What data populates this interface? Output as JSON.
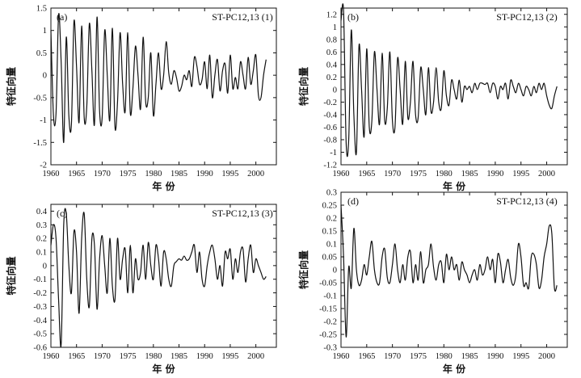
{
  "figure": {
    "xlabel": "年 份",
    "ylabel": "特征向量"
  },
  "chart_data": [
    {
      "type": "line",
      "panel": "(a)",
      "title": "ST-PC12,13 (1)",
      "xlabel": "年 份",
      "ylabel": "特征向量",
      "xlim": [
        1960,
        2004
      ],
      "ylim": [
        -2,
        1.5
      ],
      "xticks": [
        1960,
        1965,
        1970,
        1975,
        1980,
        1985,
        1990,
        1995,
        2000
      ],
      "yticks": [
        1.5,
        1,
        0.5,
        0,
        -0.5,
        -1,
        -1.5,
        -2
      ],
      "x": [
        1960.0,
        1960.5,
        1961.0,
        1961.5,
        1962.0,
        1962.5,
        1963.0,
        1963.5,
        1964.0,
        1964.5,
        1965.0,
        1965.5,
        1966.0,
        1966.5,
        1967.0,
        1967.5,
        1968.0,
        1968.5,
        1969.0,
        1969.5,
        1970.0,
        1970.5,
        1971.0,
        1971.5,
        1972.0,
        1972.5,
        1973.0,
        1973.5,
        1974.0,
        1974.5,
        1975.0,
        1975.5,
        1976.0,
        1976.5,
        1977.0,
        1977.5,
        1978.0,
        1978.5,
        1979.0,
        1979.5,
        1980.0,
        1980.5,
        1981.0,
        1981.5,
        1982.0,
        1982.5,
        1983.0,
        1983.5,
        1984.0,
        1984.5,
        1985.0,
        1985.5,
        1986.0,
        1986.5,
        1987.0,
        1987.5,
        1988.0,
        1988.5,
        1989.0,
        1989.5,
        1990.0,
        1990.5,
        1991.0,
        1991.5,
        1992.0,
        1992.5,
        1993.0,
        1993.5,
        1994.0,
        1994.5,
        1995.0,
        1995.5,
        1996.0,
        1996.5,
        1997.0,
        1997.5,
        1998.0,
        1998.5,
        1999.0,
        1999.5,
        2000.0,
        2000.5,
        2001.0,
        2001.5,
        2002.0
      ],
      "y": [
        1.0,
        -0.9,
        -0.85,
        1.35,
        0.3,
        -1.5,
        0.85,
        -0.9,
        -1.1,
        1.2,
        0.2,
        -1.05,
        1.1,
        -0.95,
        -0.7,
        1.15,
        0.1,
        -1.1,
        1.3,
        -0.8,
        -0.95,
        1.0,
        0.0,
        -1.0,
        1.05,
        -1.15,
        -0.6,
        0.95,
        -0.2,
        -0.8,
        0.95,
        -0.85,
        -0.3,
        0.65,
        0.0,
        -0.75,
        0.85,
        -0.6,
        -0.5,
        0.5,
        -0.9,
        -0.2,
        0.5,
        -0.3,
        0.0,
        0.75,
        0.05,
        -0.2,
        0.1,
        -0.05,
        -0.35,
        -0.25,
        0.0,
        -0.1,
        0.1,
        -0.25,
        0.4,
        0.2,
        -0.2,
        -0.1,
        0.3,
        -0.3,
        0.45,
        -0.5,
        0.0,
        0.35,
        -0.35,
        0.1,
        0.25,
        -0.4,
        0.45,
        -0.3,
        -0.05,
        -0.3,
        0.3,
        0.0,
        -0.3,
        0.4,
        -0.2,
        0.1,
        0.45,
        -0.45,
        -0.5,
        0.0,
        0.35
      ]
    },
    {
      "type": "line",
      "panel": "(b)",
      "title": "ST-PC12,13 (2)",
      "xlabel": "年 份",
      "ylabel": "特征向量",
      "xlim": [
        1960,
        2004
      ],
      "ylim": [
        -1.2,
        1.3
      ],
      "xticks": [
        1960,
        1965,
        1970,
        1975,
        1980,
        1985,
        1990,
        1995,
        2000
      ],
      "yticks": [
        1.2,
        1,
        0.8,
        0.6,
        0.4,
        0.2,
        0,
        -0.2,
        -0.4,
        -0.6,
        -0.8,
        -1,
        -1.2
      ],
      "x": [
        1960.0,
        1960.5,
        1961.0,
        1961.5,
        1962.0,
        1962.5,
        1963.0,
        1963.5,
        1964.0,
        1964.5,
        1965.0,
        1965.5,
        1966.0,
        1966.5,
        1967.0,
        1967.5,
        1968.0,
        1968.5,
        1969.0,
        1969.5,
        1970.0,
        1970.5,
        1971.0,
        1971.5,
        1972.0,
        1972.5,
        1973.0,
        1973.5,
        1974.0,
        1974.5,
        1975.0,
        1975.5,
        1976.0,
        1976.5,
        1977.0,
        1977.5,
        1978.0,
        1978.5,
        1979.0,
        1979.5,
        1980.0,
        1980.5,
        1981.0,
        1981.5,
        1982.0,
        1982.5,
        1983.0,
        1983.5,
        1984.0,
        1984.5,
        1985.0,
        1985.5,
        1986.0,
        1986.5,
        1987.0,
        1987.5,
        1988.0,
        1988.5,
        1989.0,
        1989.5,
        1990.0,
        1990.5,
        1991.0,
        1991.5,
        1992.0,
        1992.5,
        1993.0,
        1993.5,
        1994.0,
        1994.5,
        1995.0,
        1995.5,
        1996.0,
        1996.5,
        1997.0,
        1997.5,
        1998.0,
        1998.5,
        1999.0,
        1999.5,
        2000.0,
        2000.5,
        2001.0,
        2001.5,
        2002.0
      ],
      "y": [
        1.1,
        1.25,
        -0.85,
        -0.8,
        0.95,
        -0.4,
        -1.0,
        0.7,
        0.0,
        -0.75,
        0.65,
        -0.6,
        -0.5,
        0.6,
        0.0,
        -0.55,
        0.58,
        -0.5,
        -0.3,
        0.6,
        -0.5,
        -0.6,
        0.5,
        0.0,
        -0.55,
        0.45,
        -0.45,
        -0.2,
        0.45,
        -0.4,
        -0.45,
        0.35,
        0.0,
        -0.4,
        0.35,
        -0.35,
        -0.2,
        0.35,
        -0.2,
        -0.3,
        0.3,
        -0.1,
        -0.25,
        0.15,
        0.0,
        -0.15,
        0.15,
        -0.2,
        0.05,
        0.0,
        0.05,
        -0.05,
        0.1,
        0.0,
        0.1,
        0.1,
        0.08,
        0.1,
        -0.05,
        0.1,
        0.05,
        -0.15,
        0.05,
        0.0,
        0.1,
        -0.15,
        0.15,
        0.05,
        -0.05,
        0.1,
        0.0,
        -0.1,
        0.05,
        0.0,
        -0.1,
        0.05,
        -0.05,
        0.1,
        0.0,
        0.1,
        -0.1,
        -0.25,
        -0.3,
        -0.1,
        0.05
      ]
    },
    {
      "type": "line",
      "panel": "(c)",
      "title": "ST-PC12,13 (3)",
      "xlabel": "年 份",
      "ylabel": "特征向量",
      "xlim": [
        1960,
        2004
      ],
      "ylim": [
        -0.6,
        0.45
      ],
      "xticks": [
        1960,
        1965,
        1970,
        1975,
        1980,
        1985,
        1990,
        1995,
        2000
      ],
      "yticks": [
        0.4,
        0.3,
        0.2,
        0.1,
        0,
        -0.1,
        -0.2,
        -0.3,
        -0.4,
        -0.5,
        -0.6
      ],
      "x": [
        1960.0,
        1960.5,
        1961.0,
        1961.5,
        1962.0,
        1962.5,
        1963.0,
        1963.5,
        1964.0,
        1964.5,
        1965.0,
        1965.5,
        1966.0,
        1966.5,
        1967.0,
        1967.5,
        1968.0,
        1968.5,
        1969.0,
        1969.5,
        1970.0,
        1970.5,
        1971.0,
        1971.5,
        1972.0,
        1972.5,
        1973.0,
        1973.5,
        1974.0,
        1974.5,
        1975.0,
        1975.5,
        1976.0,
        1976.5,
        1977.0,
        1977.5,
        1978.0,
        1978.5,
        1979.0,
        1979.5,
        1980.0,
        1980.5,
        1981.0,
        1981.5,
        1982.0,
        1982.5,
        1983.0,
        1983.5,
        1984.0,
        1984.5,
        1985.0,
        1985.5,
        1986.0,
        1986.5,
        1987.0,
        1987.5,
        1988.0,
        1988.5,
        1989.0,
        1989.5,
        1990.0,
        1990.5,
        1991.0,
        1991.5,
        1992.0,
        1992.5,
        1993.0,
        1993.5,
        1994.0,
        1994.5,
        1995.0,
        1995.5,
        1996.0,
        1996.5,
        1997.0,
        1997.5,
        1998.0,
        1998.5,
        1999.0,
        1999.5,
        2000.0,
        2000.5,
        2001.0,
        2001.5,
        2002.0
      ],
      "y": [
        0.15,
        0.3,
        0.2,
        -0.25,
        -0.58,
        0.3,
        0.38,
        0.0,
        -0.2,
        0.25,
        0.1,
        -0.35,
        0.2,
        0.38,
        -0.1,
        -0.3,
        0.2,
        0.15,
        -0.32,
        0.05,
        0.22,
        0.0,
        -0.2,
        0.2,
        -0.15,
        -0.25,
        0.2,
        -0.1,
        0.05,
        0.12,
        -0.2,
        0.15,
        -0.2,
        0.05,
        -0.1,
        -0.05,
        0.15,
        -0.1,
        0.17,
        0.0,
        -0.1,
        0.15,
        0.05,
        -0.15,
        0.1,
        0.05,
        -0.1,
        -0.15,
        0.0,
        0.03,
        0.05,
        0.04,
        0.07,
        0.04,
        0.05,
        0.1,
        0.15,
        -0.05,
        0.1,
        -0.1,
        -0.15,
        0.0,
        0.1,
        0.15,
        0.05,
        -0.1,
        0.0,
        -0.15,
        0.1,
        0.05,
        0.12,
        -0.1,
        0.05,
        -0.05,
        0.1,
        0.12,
        -0.12,
        0.05,
        0.15,
        -0.05,
        0.05,
        0.0,
        -0.05,
        -0.1,
        -0.08
      ]
    },
    {
      "type": "line",
      "panel": "(d)",
      "title": "ST-PC12,13 (4)",
      "xlabel": "年 份",
      "ylabel": "特征向量",
      "xlim": [
        1960,
        2004
      ],
      "ylim": [
        -0.3,
        0.3
      ],
      "xticks": [
        1960,
        1965,
        1970,
        1975,
        1980,
        1985,
        1990,
        1995,
        2000
      ],
      "yticks": [
        0.3,
        0.25,
        0.2,
        0.15,
        0.1,
        0.05,
        0,
        -0.05,
        -0.1,
        -0.15,
        -0.2,
        -0.25,
        -0.3
      ],
      "x": [
        1960.0,
        1960.5,
        1961.0,
        1961.5,
        1962.0,
        1962.5,
        1963.0,
        1963.5,
        1964.0,
        1964.5,
        1965.0,
        1965.5,
        1966.0,
        1966.5,
        1967.0,
        1967.5,
        1968.0,
        1968.5,
        1969.0,
        1969.5,
        1970.0,
        1970.5,
        1971.0,
        1971.5,
        1972.0,
        1972.5,
        1973.0,
        1973.5,
        1974.0,
        1974.5,
        1975.0,
        1975.5,
        1976.0,
        1976.5,
        1977.0,
        1977.5,
        1978.0,
        1978.5,
        1979.0,
        1979.5,
        1980.0,
        1980.5,
        1981.0,
        1981.5,
        1982.0,
        1982.5,
        1983.0,
        1983.5,
        1984.0,
        1984.5,
        1985.0,
        1985.5,
        1986.0,
        1986.5,
        1987.0,
        1987.5,
        1988.0,
        1988.5,
        1989.0,
        1989.5,
        1990.0,
        1990.5,
        1991.0,
        1991.5,
        1992.0,
        1992.5,
        1993.0,
        1993.5,
        1994.0,
        1994.5,
        1995.0,
        1995.5,
        1996.0,
        1996.5,
        1997.0,
        1997.5,
        1998.0,
        1998.5,
        1999.0,
        1999.5,
        2000.0,
        2000.5,
        2001.0,
        2001.5,
        2002.0
      ],
      "y": [
        0.25,
        0.05,
        -0.26,
        0.01,
        -0.07,
        0.16,
        0.0,
        -0.06,
        -0.04,
        0.02,
        -0.02,
        0.05,
        0.11,
        0.0,
        -0.05,
        -0.05,
        0.05,
        0.08,
        -0.03,
        -0.05,
        0.02,
        0.1,
        0.0,
        -0.05,
        0.02,
        -0.04,
        0.05,
        0.07,
        -0.05,
        0.02,
        -0.04,
        0.07,
        -0.05,
        0.0,
        0.02,
        0.1,
        0.01,
        -0.04,
        0.02,
        0.03,
        -0.05,
        0.06,
        0.0,
        0.05,
        0.0,
        0.02,
        -0.04,
        0.03,
        0.0,
        -0.02,
        -0.05,
        -0.02,
        0.0,
        -0.04,
        0.02,
        -0.02,
        0.0,
        0.05,
        0.0,
        0.04,
        -0.05,
        0.06,
        0.03,
        -0.05,
        0.0,
        0.04,
        -0.03,
        -0.06,
        -0.02,
        0.1,
        0.05,
        -0.06,
        -0.05,
        -0.07,
        0.05,
        0.06,
        0.02,
        -0.07,
        -0.04,
        0.05,
        0.1,
        0.17,
        0.14,
        -0.07,
        -0.06
      ]
    }
  ]
}
